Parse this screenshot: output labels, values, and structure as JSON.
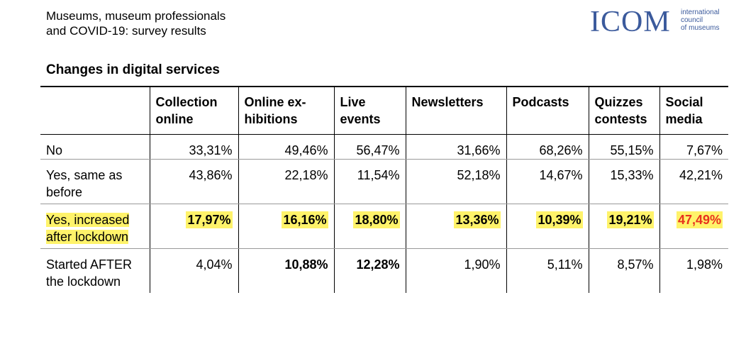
{
  "header": {
    "line1": "Museums, museum professionals",
    "line2": "and COVID-19: survey results"
  },
  "logo": {
    "wordmark": "ICOM",
    "tag_line1": "international",
    "tag_line2": "council",
    "tag_line3": "of museums",
    "color": "#3b5a9c"
  },
  "section_title": "Changes in digital services",
  "table": {
    "columns": [
      {
        "line1": "Collection",
        "line2": "online"
      },
      {
        "line1": "Online ex-",
        "line2": "hibitions"
      },
      {
        "line1": "Live",
        "line2": "events"
      },
      {
        "line1": "Newsletters",
        "line2": ""
      },
      {
        "line1": "Podcasts",
        "line2": ""
      },
      {
        "line1": "Quizzes",
        "line2": "contests"
      },
      {
        "line1": "Social",
        "line2": "media"
      }
    ],
    "rows": [
      {
        "label_line1": "No",
        "label_line2": "",
        "values": [
          "33,31%",
          "49,46%",
          "56,47%",
          "31,66%",
          "68,26%",
          "55,15%",
          "7,67%"
        ]
      },
      {
        "label_line1": "Yes, same as",
        "label_line2": "before",
        "values": [
          "43,86%",
          "22,18%",
          "11,54%",
          "52,18%",
          "14,67%",
          "15,33%",
          "42,21%"
        ]
      },
      {
        "label_line1": "Yes, increased",
        "label_line2": "after lockdown",
        "values": [
          "17,97%",
          "16,16%",
          "18,80%",
          "13,36%",
          "10,39%",
          "19,21%",
          "47,49%"
        ]
      },
      {
        "label_line1": "Started AFTER",
        "label_line2": "the lockdown",
        "values": [
          "4,04%",
          "10,88%",
          "12,28%",
          "1,90%",
          "5,11%",
          "8,57%",
          "1,98%"
        ]
      }
    ],
    "highlight_color": "#fff36a",
    "emphasis_color": "#e8321e"
  }
}
